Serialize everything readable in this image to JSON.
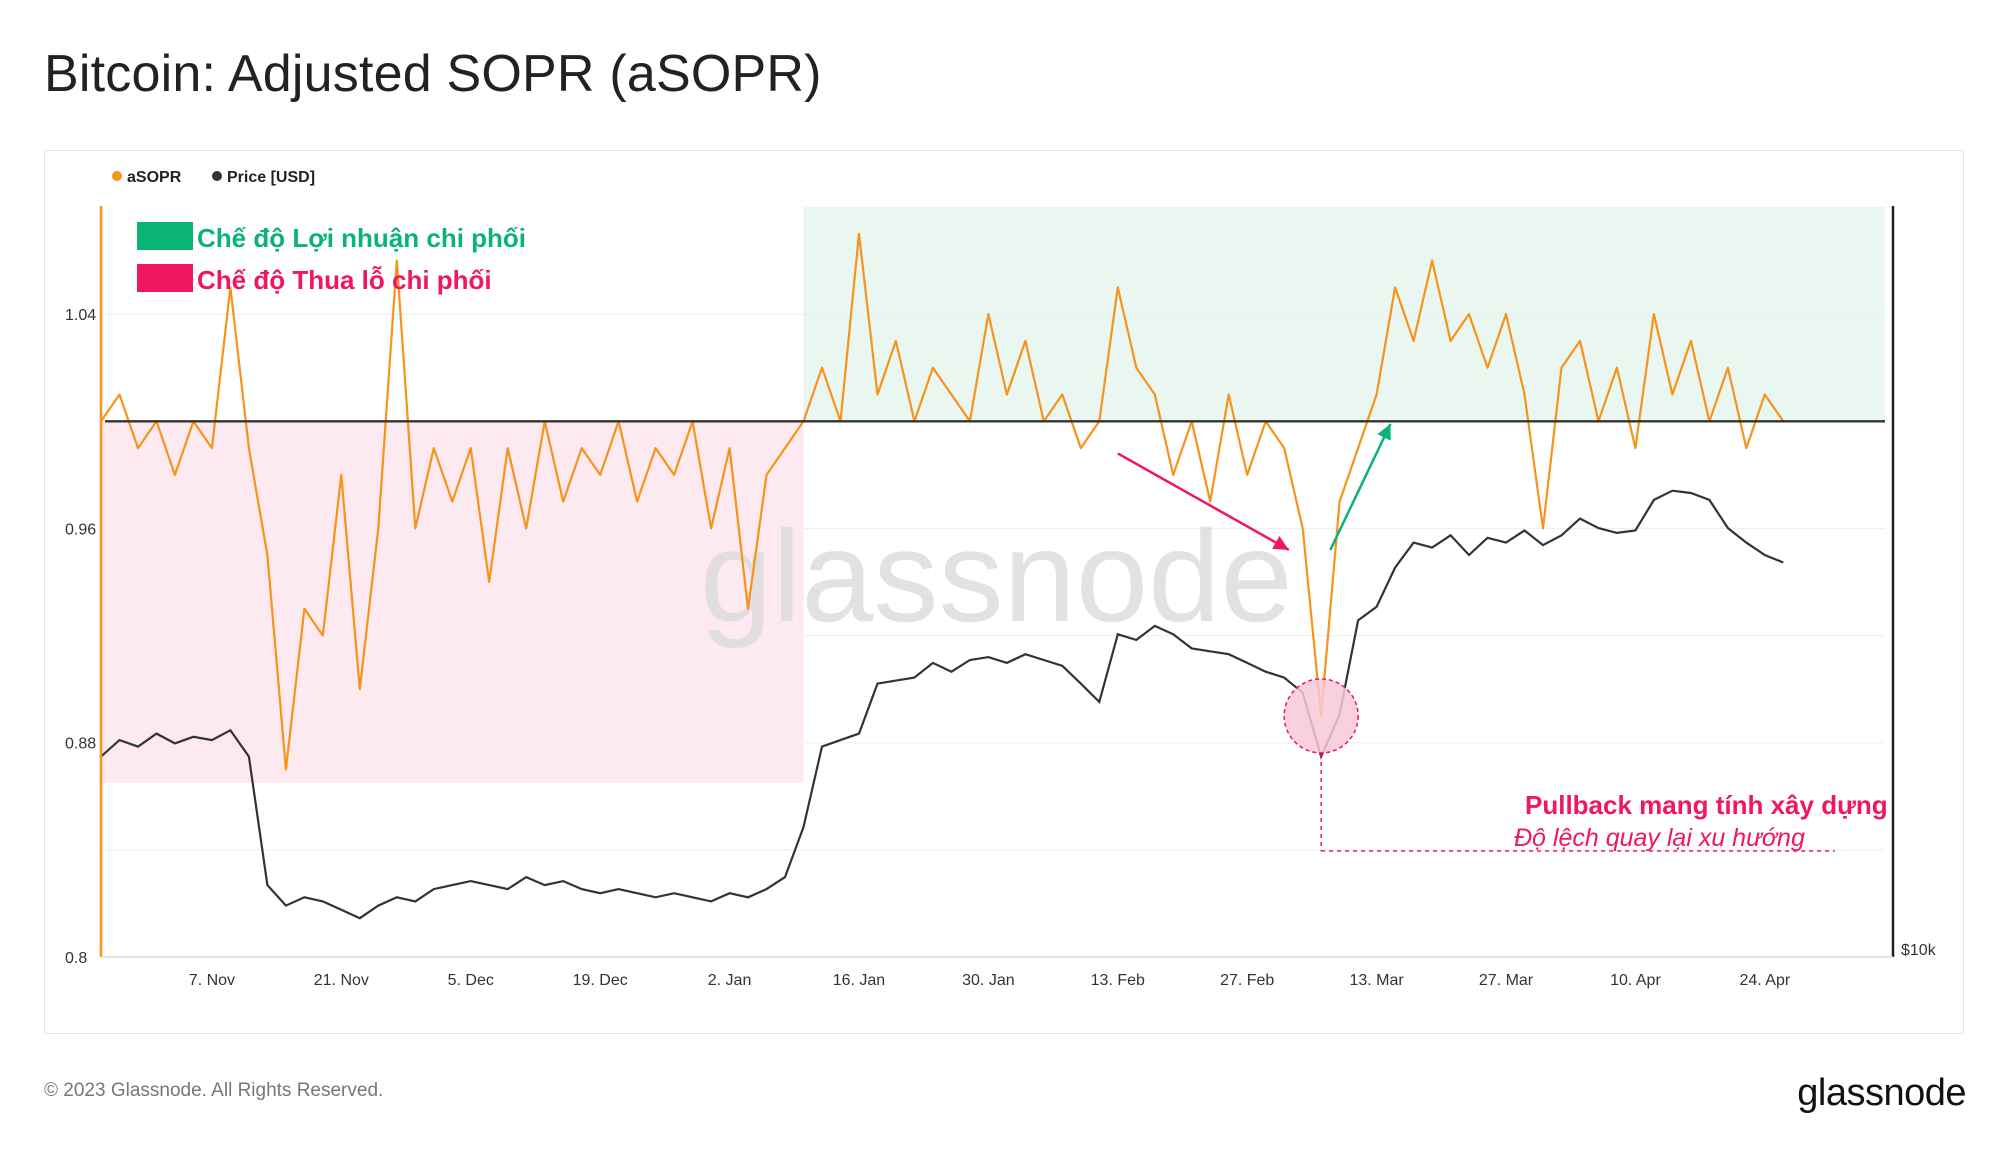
{
  "title": "Bitcoin: Adjusted SOPR (aSOPR)",
  "footer": {
    "copyright": "© 2023 Glassnode. All Rights Reserved.",
    "logo": "glassnode"
  },
  "watermark": "glassnode",
  "chart_data": {
    "type": "line",
    "legend": [
      {
        "name": "aSOPR",
        "color": "#f7931a"
      },
      {
        "name": "Price [USD]",
        "color": "#333333"
      }
    ],
    "y_left": {
      "ticks": [
        "1.04",
        "0.96",
        "0.88",
        "0.8"
      ],
      "range": [
        0.8,
        1.08
      ]
    },
    "y_right": {
      "ticks": [
        "$10k"
      ]
    },
    "x_ticks": [
      "7. Nov",
      "21. Nov",
      "5. Dec",
      "19. Dec",
      "2. Jan",
      "16. Jan",
      "30. Jan",
      "13. Feb",
      "27. Feb",
      "13. Mar",
      "27. Mar",
      "10. Apr",
      "24. Apr"
    ],
    "x_range_days": [
      -12,
      181
    ],
    "x_tick_days": [
      0,
      14,
      28,
      42,
      56,
      70,
      84,
      98,
      112,
      126,
      140,
      154,
      168
    ],
    "baseline": 1.0,
    "regimes": [
      {
        "label": "Chế độ Lợi nhuận chi phối",
        "color": "#0ab475",
        "fill": "#e9f7f0",
        "x_start_day": 64,
        "x_end_day": 181,
        "y_top": 1.08,
        "y_bottom": 1.0
      },
      {
        "label": "Chế độ Thua lỗ chi phối",
        "color": "#f0165f",
        "fill": "#fdeaf0",
        "x_start_day": -12,
        "x_end_day": 64,
        "y_top": 1.0,
        "y_bottom": 0.865
      }
    ],
    "annotation": {
      "title": "Pullback mang tính xây dựng",
      "subtitle": "Độ lệch quay lại xu hướng",
      "color": "#f0165f",
      "x_day": 120,
      "y_value": 0.89
    },
    "asopr_series": {
      "days": [
        -12,
        -10,
        -8,
        -6,
        -4,
        -2,
        0,
        2,
        4,
        6,
        8,
        10,
        12,
        14,
        16,
        18,
        20,
        22,
        24,
        26,
        28,
        30,
        32,
        34,
        36,
        38,
        40,
        42,
        44,
        46,
        48,
        50,
        52,
        54,
        56,
        58,
        60,
        62,
        64,
        66,
        68,
        70,
        72,
        74,
        76,
        78,
        80,
        82,
        84,
        86,
        88,
        90,
        92,
        94,
        96,
        98,
        100,
        102,
        104,
        106,
        108,
        110,
        112,
        114,
        116,
        118,
        120,
        122,
        124,
        126,
        128,
        130,
        132,
        134,
        136,
        138,
        140,
        142,
        144,
        146,
        148,
        150,
        152,
        154,
        156,
        158,
        160,
        162,
        164,
        166,
        168,
        170
      ],
      "values": [
        1.0,
        1.01,
        0.99,
        1.0,
        0.98,
        1.0,
        0.99,
        1.05,
        0.99,
        0.95,
        0.87,
        0.93,
        0.92,
        0.98,
        0.9,
        0.96,
        1.06,
        0.96,
        0.99,
        0.97,
        0.99,
        0.94,
        0.99,
        0.96,
        1.0,
        0.97,
        0.99,
        0.98,
        1.0,
        0.97,
        0.99,
        0.98,
        1.0,
        0.96,
        0.99,
        0.93,
        0.98,
        0.99,
        1.0,
        1.02,
        1.0,
        1.07,
        1.01,
        1.03,
        1.0,
        1.02,
        1.01,
        1.0,
        1.04,
        1.01,
        1.03,
        1.0,
        1.01,
        0.99,
        1.0,
        1.05,
        1.02,
        1.01,
        0.98,
        1.0,
        0.97,
        1.01,
        0.98,
        1.0,
        0.99,
        0.96,
        0.89,
        0.97,
        0.99,
        1.01,
        1.05,
        1.03,
        1.06,
        1.03,
        1.04,
        1.02,
        1.04,
        1.01,
        0.96,
        1.02,
        1.03,
        1.0,
        1.02,
        0.99,
        1.04,
        1.01,
        1.03,
        1.0,
        1.02,
        0.99,
        1.01,
        1.0
      ]
    },
    "price_series": {
      "days": [
        -12,
        -10,
        -8,
        -6,
        -4,
        -2,
        0,
        2,
        4,
        6,
        8,
        10,
        12,
        14,
        16,
        18,
        20,
        22,
        24,
        26,
        28,
        30,
        32,
        34,
        36,
        38,
        40,
        42,
        44,
        46,
        48,
        50,
        52,
        54,
        56,
        58,
        60,
        62,
        64,
        66,
        68,
        70,
        72,
        74,
        76,
        78,
        80,
        82,
        84,
        86,
        88,
        90,
        92,
        94,
        96,
        98,
        100,
        102,
        104,
        106,
        108,
        110,
        112,
        114,
        116,
        118,
        120,
        122,
        124,
        126,
        128,
        130,
        132,
        134,
        136,
        138,
        140,
        142,
        144,
        146,
        148,
        150,
        152,
        154,
        156,
        158,
        160,
        162,
        164,
        166,
        168,
        170
      ],
      "values": [
        20500,
        21000,
        20800,
        21200,
        20900,
        21100,
        21000,
        21300,
        20500,
        17000,
        16500,
        16700,
        16600,
        16400,
        16200,
        16500,
        16700,
        16600,
        16900,
        17000,
        17100,
        17000,
        16900,
        17200,
        17000,
        17100,
        16900,
        16800,
        16900,
        16800,
        16700,
        16800,
        16700,
        16600,
        16800,
        16700,
        16900,
        17200,
        18500,
        20800,
        21000,
        21200,
        22800,
        22900,
        23000,
        23500,
        23200,
        23600,
        23700,
        23500,
        23800,
        23600,
        23400,
        22800,
        22200,
        24500,
        24300,
        24800,
        24500,
        24000,
        23900,
        23800,
        23500,
        23200,
        23000,
        22500,
        20500,
        21800,
        25000,
        25500,
        27000,
        28000,
        27800,
        28300,
        27500,
        28200,
        28000,
        28500,
        27900,
        28300,
        29000,
        28600,
        28400,
        28500,
        29800,
        30200,
        30100,
        29800,
        28600,
        28000,
        27500,
        27200
      ]
    }
  }
}
